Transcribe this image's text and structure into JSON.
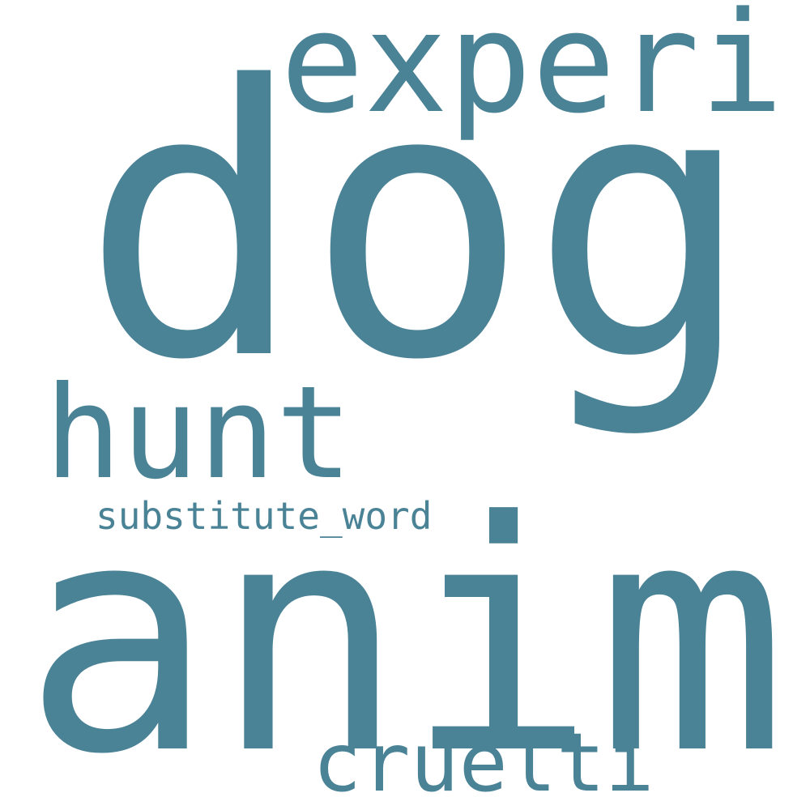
{
  "word_cloud": {
    "color": "#4a8296",
    "background": "#ffffff",
    "words": [
      {
        "text": "dog"
      },
      {
        "text": "anim"
      },
      {
        "text": "experi"
      },
      {
        "text": "hunt"
      },
      {
        "text": "cruelti"
      },
      {
        "text": "substitute_word"
      }
    ]
  }
}
